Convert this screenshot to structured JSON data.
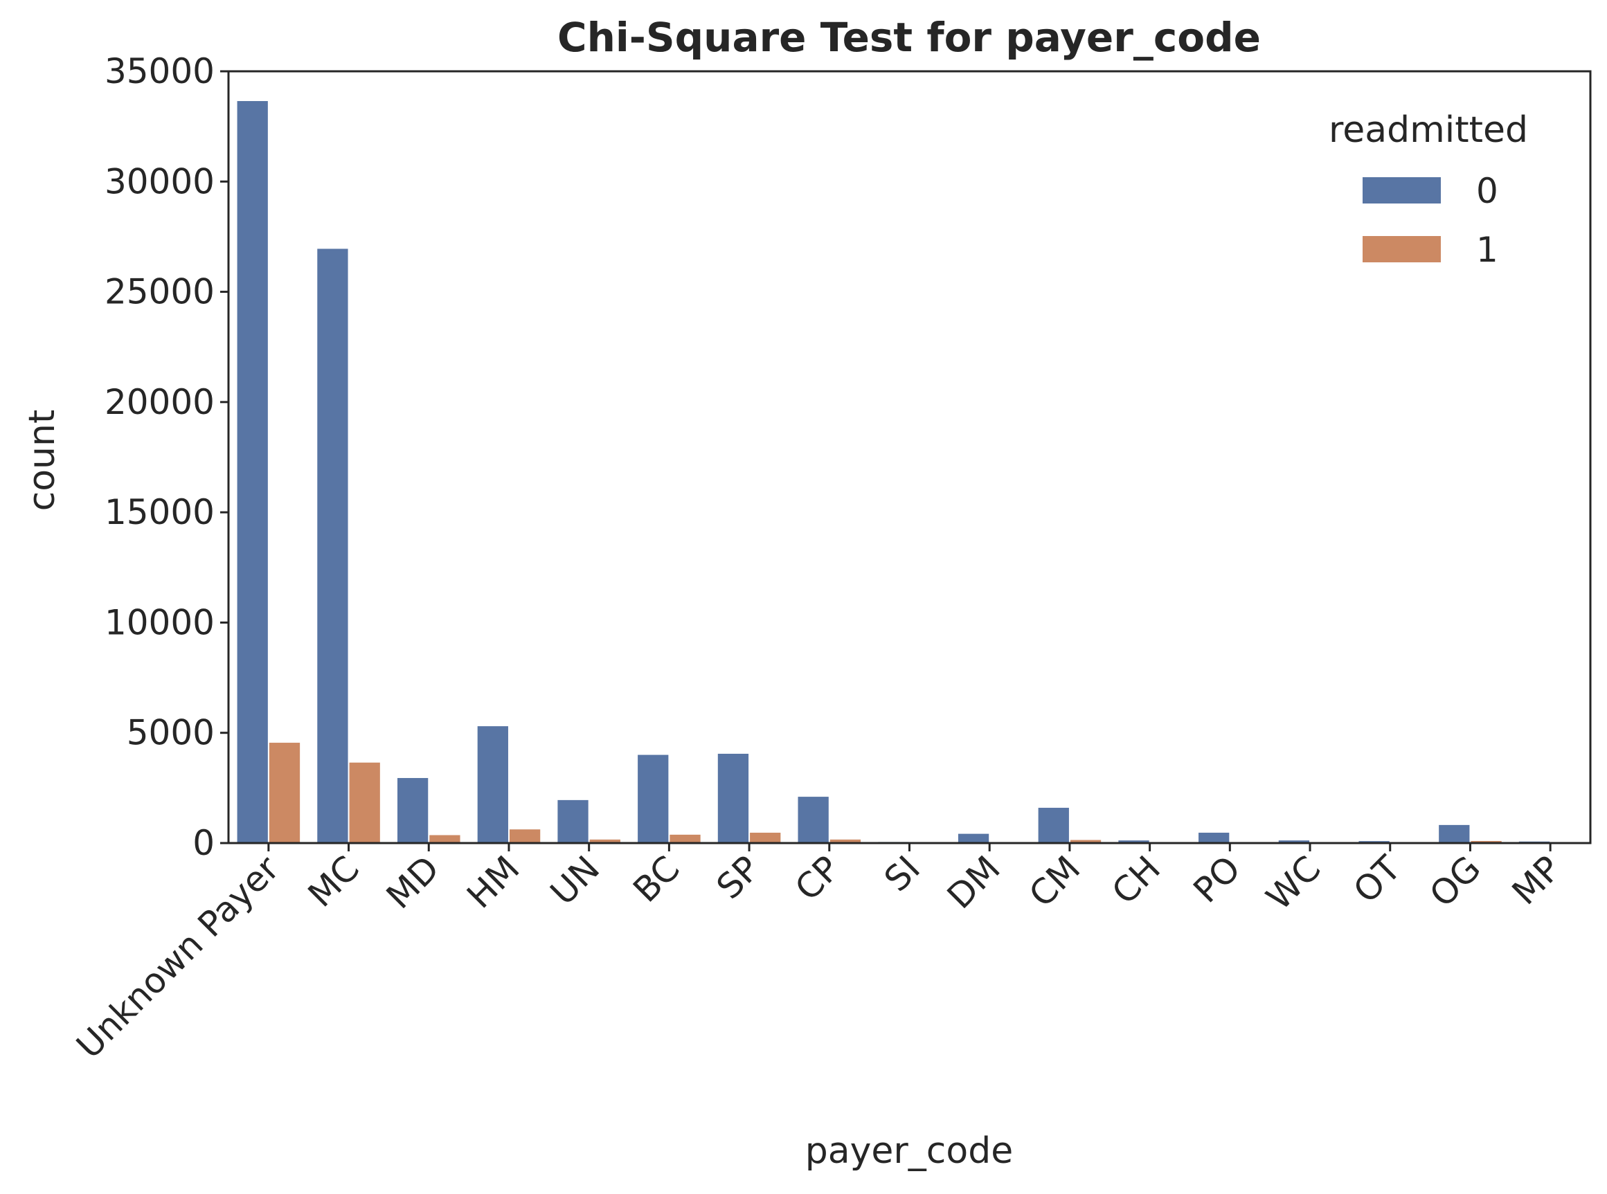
{
  "chart_data": {
    "type": "bar",
    "title": "Chi-Square Test for payer_code",
    "xlabel": "payer_code",
    "ylabel": "count",
    "categories": [
      "Unknown Payer",
      "MC",
      "MD",
      "HM",
      "UN",
      "BC",
      "SP",
      "CP",
      "SI",
      "DM",
      "CM",
      "CH",
      "PO",
      "WC",
      "OT",
      "OG",
      "MP"
    ],
    "series": [
      {
        "name": "0",
        "color": "#5875a4",
        "values": [
          33650,
          26950,
          2950,
          5300,
          1950,
          4000,
          4050,
          2100,
          50,
          420,
          1600,
          120,
          470,
          120,
          90,
          820,
          70
        ]
      },
      {
        "name": "1",
        "color": "#cc8963",
        "values": [
          4550,
          3650,
          360,
          620,
          160,
          380,
          470,
          160,
          5,
          30,
          140,
          10,
          40,
          10,
          5,
          95,
          5
        ]
      }
    ],
    "ylim": [
      0,
      35000
    ],
    "yticks": [
      "0",
      "5000",
      "10000",
      "15000",
      "20000",
      "25000",
      "30000",
      "35000"
    ],
    "legend": {
      "title": "readmitted",
      "placement": "top-right"
    },
    "grid": false
  }
}
